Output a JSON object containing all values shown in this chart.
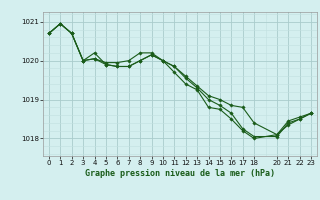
{
  "title": "Graphe pression niveau de la mer (hPa)",
  "bg_color": "#d4efef",
  "grid_color_major": "#aacccc",
  "grid_color_minor": "#c2e0e0",
  "line_color": "#1a5c1a",
  "marker_color": "#1a5c1a",
  "xlim": [
    -0.5,
    23.5
  ],
  "ylim": [
    1017.55,
    1021.25
  ],
  "yticks": [
    1018,
    1019,
    1020,
    1021
  ],
  "xticks": [
    0,
    1,
    2,
    3,
    4,
    5,
    6,
    7,
    8,
    9,
    10,
    11,
    12,
    13,
    14,
    15,
    16,
    17,
    18,
    20,
    21,
    22,
    23
  ],
  "series": [
    [
      1020.7,
      1020.95,
      1020.7,
      1020.0,
      1020.05,
      1019.95,
      1019.95,
      1020.0,
      1020.2,
      1020.2,
      1020.0,
      1019.85,
      1019.6,
      1019.35,
      1019.1,
      1019.0,
      1018.85,
      1018.8,
      1018.4,
      1018.1,
      1018.45,
      1018.55,
      1018.65
    ],
    [
      1020.7,
      1020.95,
      1020.7,
      1020.0,
      1020.2,
      1019.9,
      1019.85,
      1019.85,
      1020.0,
      1020.15,
      1020.0,
      1019.7,
      1019.4,
      1019.25,
      1018.8,
      1018.75,
      1018.5,
      1018.2,
      1018.0,
      1018.1,
      1018.35,
      1018.5,
      1018.65
    ],
    [
      1020.7,
      1020.95,
      1020.7,
      1020.0,
      1020.05,
      1019.9,
      1019.85,
      1019.85,
      1020.0,
      1020.15,
      1020.0,
      1019.85,
      1019.55,
      1019.3,
      1019.0,
      1018.85,
      1018.65,
      1018.25,
      1018.05,
      1018.05,
      1018.4,
      1018.5,
      1018.65
    ]
  ],
  "series_x": [
    [
      0,
      1,
      2,
      3,
      4,
      5,
      6,
      7,
      8,
      9,
      10,
      11,
      12,
      13,
      14,
      15,
      16,
      17,
      18,
      20,
      21,
      22,
      23
    ],
    [
      0,
      1,
      2,
      3,
      4,
      5,
      6,
      7,
      8,
      9,
      10,
      11,
      12,
      13,
      14,
      15,
      16,
      17,
      18,
      20,
      21,
      22,
      23
    ],
    [
      0,
      1,
      2,
      3,
      4,
      5,
      6,
      7,
      8,
      9,
      10,
      11,
      12,
      13,
      14,
      15,
      16,
      17,
      18,
      20,
      21,
      22,
      23
    ]
  ],
  "title_fontsize": 6.0,
  "tick_fontsize": 5.0
}
